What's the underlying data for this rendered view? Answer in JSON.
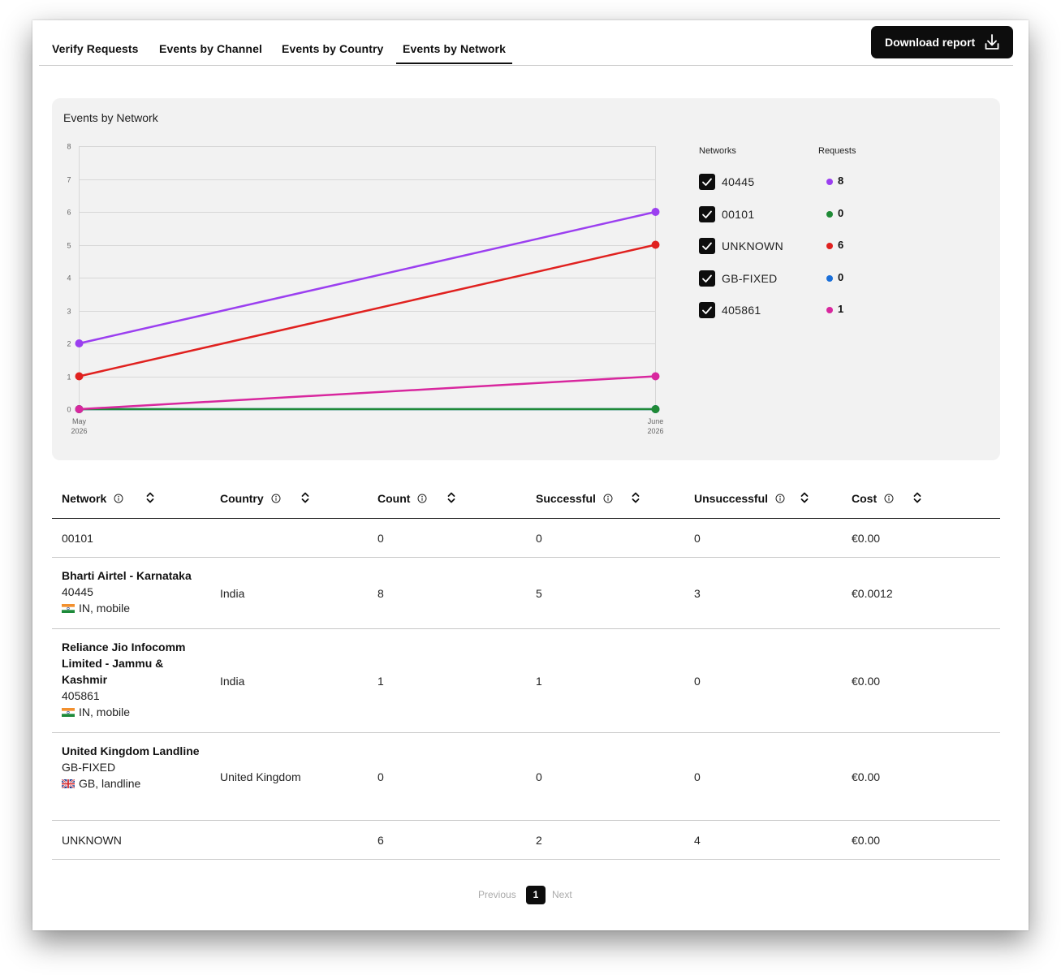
{
  "tabs": [
    {
      "label": "Verify Requests"
    },
    {
      "label": "Events by Channel"
    },
    {
      "label": "Events by Country"
    },
    {
      "label": "Events by Network",
      "active": true
    }
  ],
  "toolbar": {
    "download_label": "Download report"
  },
  "chart_card": {
    "title": "Events by Network",
    "legend_headers": {
      "networks": "Networks",
      "requests": "Requests"
    },
    "legend": [
      {
        "name": "40445",
        "requests": "8",
        "color": "#9b3ff0",
        "checked": true
      },
      {
        "name": "00101",
        "requests": "0",
        "color": "#1f8a36",
        "checked": true
      },
      {
        "name": "UNKNOWN",
        "requests": "6",
        "color": "#e0211f",
        "checked": true
      },
      {
        "name": "GB-FIXED",
        "requests": "0",
        "color": "#1a6fd9",
        "checked": true
      },
      {
        "name": "405861",
        "requests": "1",
        "color": "#d8279e",
        "checked": true
      }
    ]
  },
  "chart_data": {
    "type": "line",
    "title": "Events by Network",
    "categories": [
      "May 2026",
      "June 2026"
    ],
    "category_labels": [
      [
        "May",
        "2026"
      ],
      [
        "June",
        "2026"
      ]
    ],
    "ylim": [
      0,
      8
    ],
    "yticks": [
      0,
      1,
      2,
      3,
      4,
      5,
      6,
      7,
      8
    ],
    "grid": true,
    "legend_position": "right",
    "series": [
      {
        "name": "GB-FIXED",
        "color": "#1a6fd9",
        "values": [
          0,
          0
        ]
      },
      {
        "name": "00101",
        "color": "#1f8a36",
        "values": [
          0,
          0
        ]
      },
      {
        "name": "405861",
        "color": "#d8279e",
        "values": [
          0,
          1
        ]
      },
      {
        "name": "UNKNOWN",
        "color": "#e0211f",
        "values": [
          1,
          5
        ]
      },
      {
        "name": "40445",
        "color": "#9b3ff0",
        "values": [
          2,
          6
        ]
      }
    ]
  },
  "table": {
    "headers": [
      "Network",
      "Country",
      "Count",
      "Successful",
      "Unsuccessful",
      "Cost"
    ],
    "rows": [
      {
        "name": "",
        "code": "00101",
        "meta": "",
        "flag": "",
        "country": "",
        "count": "0",
        "successful": "0",
        "unsuccessful": "0",
        "cost": "€0.00"
      },
      {
        "name": "Bharti Airtel - Karnataka",
        "code": "40445",
        "meta": "IN, mobile",
        "flag": "IN",
        "country": "India",
        "count": "8",
        "successful": "5",
        "unsuccessful": "3",
        "cost": "€0.0012"
      },
      {
        "name": "Reliance Jio Infocomm Limited - Jammu & Kashmir",
        "code": "405861",
        "meta": "IN, mobile",
        "flag": "IN",
        "country": "India",
        "count": "1",
        "successful": "1",
        "unsuccessful": "0",
        "cost": "€0.00"
      },
      {
        "name": "United Kingdom Landline",
        "code": "GB-FIXED",
        "meta": "GB, landline",
        "flag": "GB",
        "country": "United Kingdom",
        "count": "0",
        "successful": "0",
        "unsuccessful": "0",
        "cost": "€0.00"
      },
      {
        "name": "",
        "code": "UNKNOWN",
        "meta": "",
        "flag": "",
        "country": "",
        "count": "6",
        "successful": "2",
        "unsuccessful": "4",
        "cost": "€0.00"
      }
    ]
  },
  "pagination": {
    "previous": "Previous",
    "current": "1",
    "next": "Next"
  }
}
